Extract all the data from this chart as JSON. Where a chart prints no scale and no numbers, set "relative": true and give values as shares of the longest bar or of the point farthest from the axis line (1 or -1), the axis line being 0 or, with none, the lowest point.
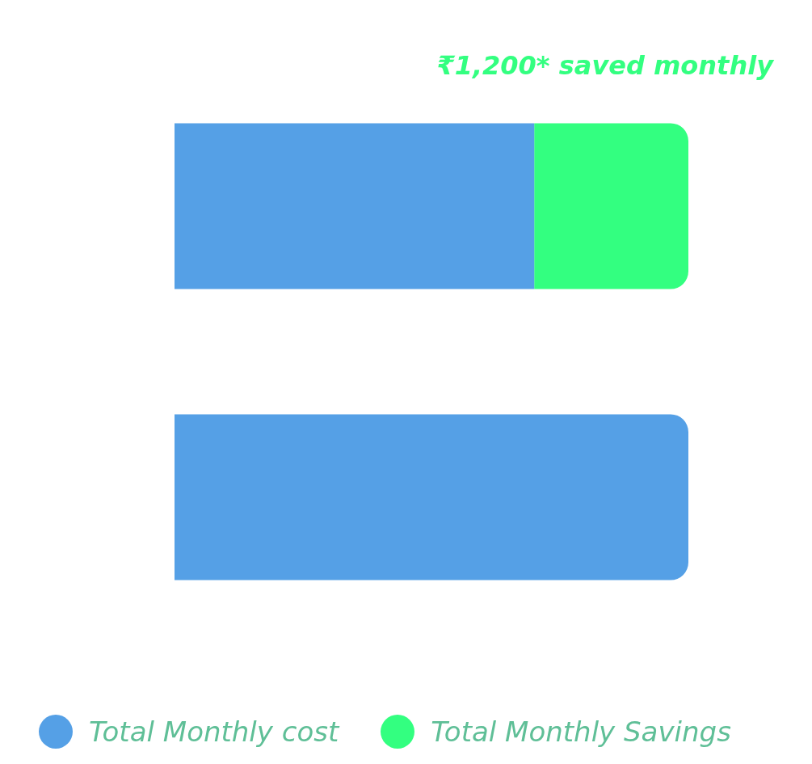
{
  "chart_data": {
    "type": "bar",
    "orientation": "horizontal",
    "stacked": true,
    "relative": true,
    "categories": [
      null,
      null
    ],
    "series": [
      {
        "name": "Total Monthly cost",
        "color": "#55a0e6",
        "values": [
          0.7,
          1
        ]
      },
      {
        "name": "Total Monthly Savings",
        "color": "#33ff80",
        "values": [
          0.3,
          null
        ]
      }
    ],
    "annotations": [
      "₹1,200* saved monthly"
    ],
    "legend": "bottom"
  }
}
